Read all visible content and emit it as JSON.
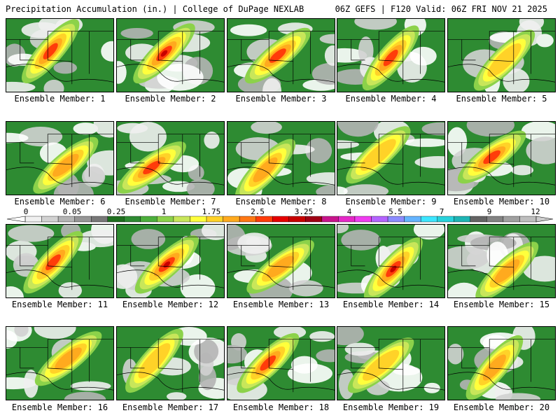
{
  "header": {
    "left_title": "Precipitation Accumulation (in.) | College of DuPage NEXLAB",
    "right_title": "06Z GEFS | F120 Valid: 06Z FRI NOV 21 2025"
  },
  "members": [
    "Ensemble Member: 1",
    "Ensemble Member: 2",
    "Ensemble Member: 3",
    "Ensemble Member: 4",
    "Ensemble Member: 5",
    "Ensemble Member: 6",
    "Ensemble Member: 7",
    "Ensemble Member: 8",
    "Ensemble Member: 9",
    "Ensemble Member: 10",
    "Ensemble Member: 11",
    "Ensemble Member: 12",
    "Ensemble Member: 13",
    "Ensemble Member: 14",
    "Ensemble Member: 15",
    "Ensemble Member: 16",
    "Ensemble Member: 17",
    "Ensemble Member: 18",
    "Ensemble Member: 19",
    "Ensemble Member: 20"
  ],
  "colorbar": {
    "tick_labels": [
      "0",
      "0.05",
      "0.25",
      "1",
      "1.75",
      "2.5",
      "3.25",
      "4",
      "5.5",
      "7",
      "9",
      "12"
    ],
    "colors": [
      "#f0f0f0",
      "#d2d2d2",
      "#b4b4b4",
      "#969696",
      "#787878",
      "#1e6e1e",
      "#2e8b32",
      "#4caf3c",
      "#8cd24a",
      "#c8e65a",
      "#ffff3c",
      "#ffd228",
      "#ffaa1e",
      "#ff7814",
      "#ff3c0a",
      "#e60000",
      "#c80000",
      "#a00014",
      "#c8148c",
      "#e628c8",
      "#f03cf0",
      "#b464ff",
      "#8c8cff",
      "#64b4ff",
      "#3ce6ff",
      "#28d2dc",
      "#1eb4b4",
      "#646464",
      "#828282",
      "#a0a0a0",
      "#bebebe"
    ]
  }
}
